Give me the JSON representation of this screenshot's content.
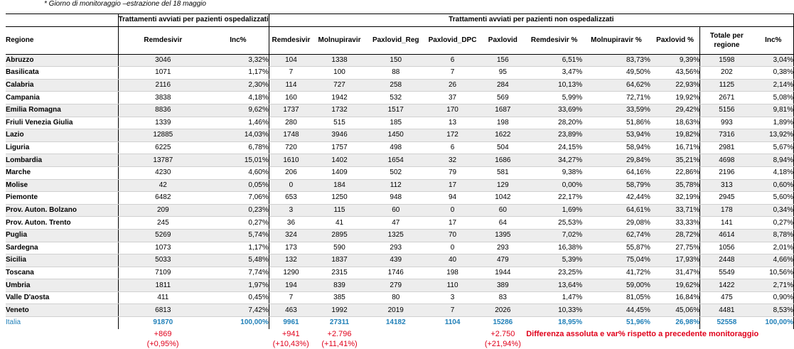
{
  "note": "* Giorno di monitoraggio –estrazione del 18 maggio",
  "headers": {
    "group_hosp": "Trattamenti avviati per pazienti ospedalizzati",
    "group_nonhosp": "Trattamenti avviati per pazienti non ospedalizzati",
    "regione": "Regione",
    "cols": [
      "Remdesivir",
      "Inc%",
      "Remdesivir",
      "Molnupiravir",
      "Paxlovid_Reg",
      "Paxlovid_DPC",
      "Paxlovid",
      "Remdesivir %",
      "Molnupiravir %",
      "Paxlovid %",
      "Totale per regione",
      "Inc%"
    ]
  },
  "rows": [
    [
      "Abruzzo",
      "3046",
      "3,32%",
      "104",
      "1338",
      "150",
      "6",
      "156",
      "6,51%",
      "83,73%",
      "9,39%",
      "1598",
      "3,04%"
    ],
    [
      "Basilicata",
      "1071",
      "1,17%",
      "7",
      "100",
      "88",
      "7",
      "95",
      "3,47%",
      "49,50%",
      "43,56%",
      "202",
      "0,38%"
    ],
    [
      "Calabria",
      "2116",
      "2,30%",
      "114",
      "727",
      "258",
      "26",
      "284",
      "10,13%",
      "64,62%",
      "22,93%",
      "1125",
      "2,14%"
    ],
    [
      "Campania",
      "3838",
      "4,18%",
      "160",
      "1942",
      "532",
      "37",
      "569",
      "5,99%",
      "72,71%",
      "19,92%",
      "2671",
      "5,08%"
    ],
    [
      "Emilia Romagna",
      "8836",
      "9,62%",
      "1737",
      "1732",
      "1517",
      "170",
      "1687",
      "33,69%",
      "33,59%",
      "29,42%",
      "5156",
      "9,81%"
    ],
    [
      "Friuli Venezia Giulia",
      "1339",
      "1,46%",
      "280",
      "515",
      "185",
      "13",
      "198",
      "28,20%",
      "51,86%",
      "18,63%",
      "993",
      "1,89%"
    ],
    [
      "Lazio",
      "12885",
      "14,03%",
      "1748",
      "3946",
      "1450",
      "172",
      "1622",
      "23,89%",
      "53,94%",
      "19,82%",
      "7316",
      "13,92%"
    ],
    [
      "Liguria",
      "6225",
      "6,78%",
      "720",
      "1757",
      "498",
      "6",
      "504",
      "24,15%",
      "58,94%",
      "16,71%",
      "2981",
      "5,67%"
    ],
    [
      "Lombardia",
      "13787",
      "15,01%",
      "1610",
      "1402",
      "1654",
      "32",
      "1686",
      "34,27%",
      "29,84%",
      "35,21%",
      "4698",
      "8,94%"
    ],
    [
      "Marche",
      "4230",
      "4,60%",
      "206",
      "1409",
      "502",
      "79",
      "581",
      "9,38%",
      "64,16%",
      "22,86%",
      "2196",
      "4,18%"
    ],
    [
      "Molise",
      "42",
      "0,05%",
      "0",
      "184",
      "112",
      "17",
      "129",
      "0,00%",
      "58,79%",
      "35,78%",
      "313",
      "0,60%"
    ],
    [
      "Piemonte",
      "6482",
      "7,06%",
      "653",
      "1250",
      "948",
      "94",
      "1042",
      "22,17%",
      "42,44%",
      "32,19%",
      "2945",
      "5,60%"
    ],
    [
      "Prov. Auton. Bolzano",
      "209",
      "0,23%",
      "3",
      "115",
      "60",
      "0",
      "60",
      "1,69%",
      "64,61%",
      "33,71%",
      "178",
      "0,34%"
    ],
    [
      "Prov. Auton. Trento",
      "245",
      "0,27%",
      "36",
      "41",
      "47",
      "17",
      "64",
      "25,53%",
      "29,08%",
      "33,33%",
      "141",
      "0,27%"
    ],
    [
      "Puglia",
      "5269",
      "5,74%",
      "324",
      "2895",
      "1325",
      "70",
      "1395",
      "7,02%",
      "62,74%",
      "28,72%",
      "4614",
      "8,78%"
    ],
    [
      "Sardegna",
      "1073",
      "1,17%",
      "173",
      "590",
      "293",
      "0",
      "293",
      "16,38%",
      "55,87%",
      "27,75%",
      "1056",
      "2,01%"
    ],
    [
      "Sicilia",
      "5033",
      "5,48%",
      "132",
      "1837",
      "439",
      "40",
      "479",
      "5,39%",
      "75,04%",
      "17,93%",
      "2448",
      "4,66%"
    ],
    [
      "Toscana",
      "7109",
      "7,74%",
      "1290",
      "2315",
      "1746",
      "198",
      "1944",
      "23,25%",
      "41,72%",
      "31,47%",
      "5549",
      "10,56%"
    ],
    [
      "Umbria",
      "1811",
      "1,97%",
      "194",
      "839",
      "279",
      "110",
      "389",
      "13,64%",
      "59,00%",
      "19,62%",
      "1422",
      "2,71%"
    ],
    [
      "Valle D'aosta",
      "411",
      "0,45%",
      "7",
      "385",
      "80",
      "3",
      "83",
      "1,47%",
      "81,05%",
      "16,84%",
      "475",
      "0,90%"
    ],
    [
      "Veneto",
      "6813",
      "7,42%",
      "463",
      "1992",
      "2019",
      "7",
      "2026",
      "10,33%",
      "44,45%",
      "45,06%",
      "4481",
      "8,53%"
    ]
  ],
  "italia": [
    "Italia",
    "91870",
    "100,00%",
    "9961",
    "27311",
    "14182",
    "1104",
    "15286",
    "18,95%",
    "51,96%",
    "26,98%",
    "52558",
    "100,00%"
  ],
  "diff": {
    "remdesivir_hosp": "+869",
    "remdesivir_hosp_pct": "(+0,95%)",
    "remdesivir_nonhosp": "+941",
    "remdesivir_nonhosp_pct": "(+10,43%)",
    "molnupiravir": "+2.796",
    "molnupiravir_pct": "(+11,41%)",
    "paxlovid": "+2.750",
    "paxlovid_pct": "(+21,94%)",
    "caption": "Differenza assoluta e var% rispetto a precedente monitoraggio"
  },
  "colors": {
    "italia_text": "#1f7fb8",
    "diff_text": "#e0001b",
    "stripe": "#ededed"
  }
}
